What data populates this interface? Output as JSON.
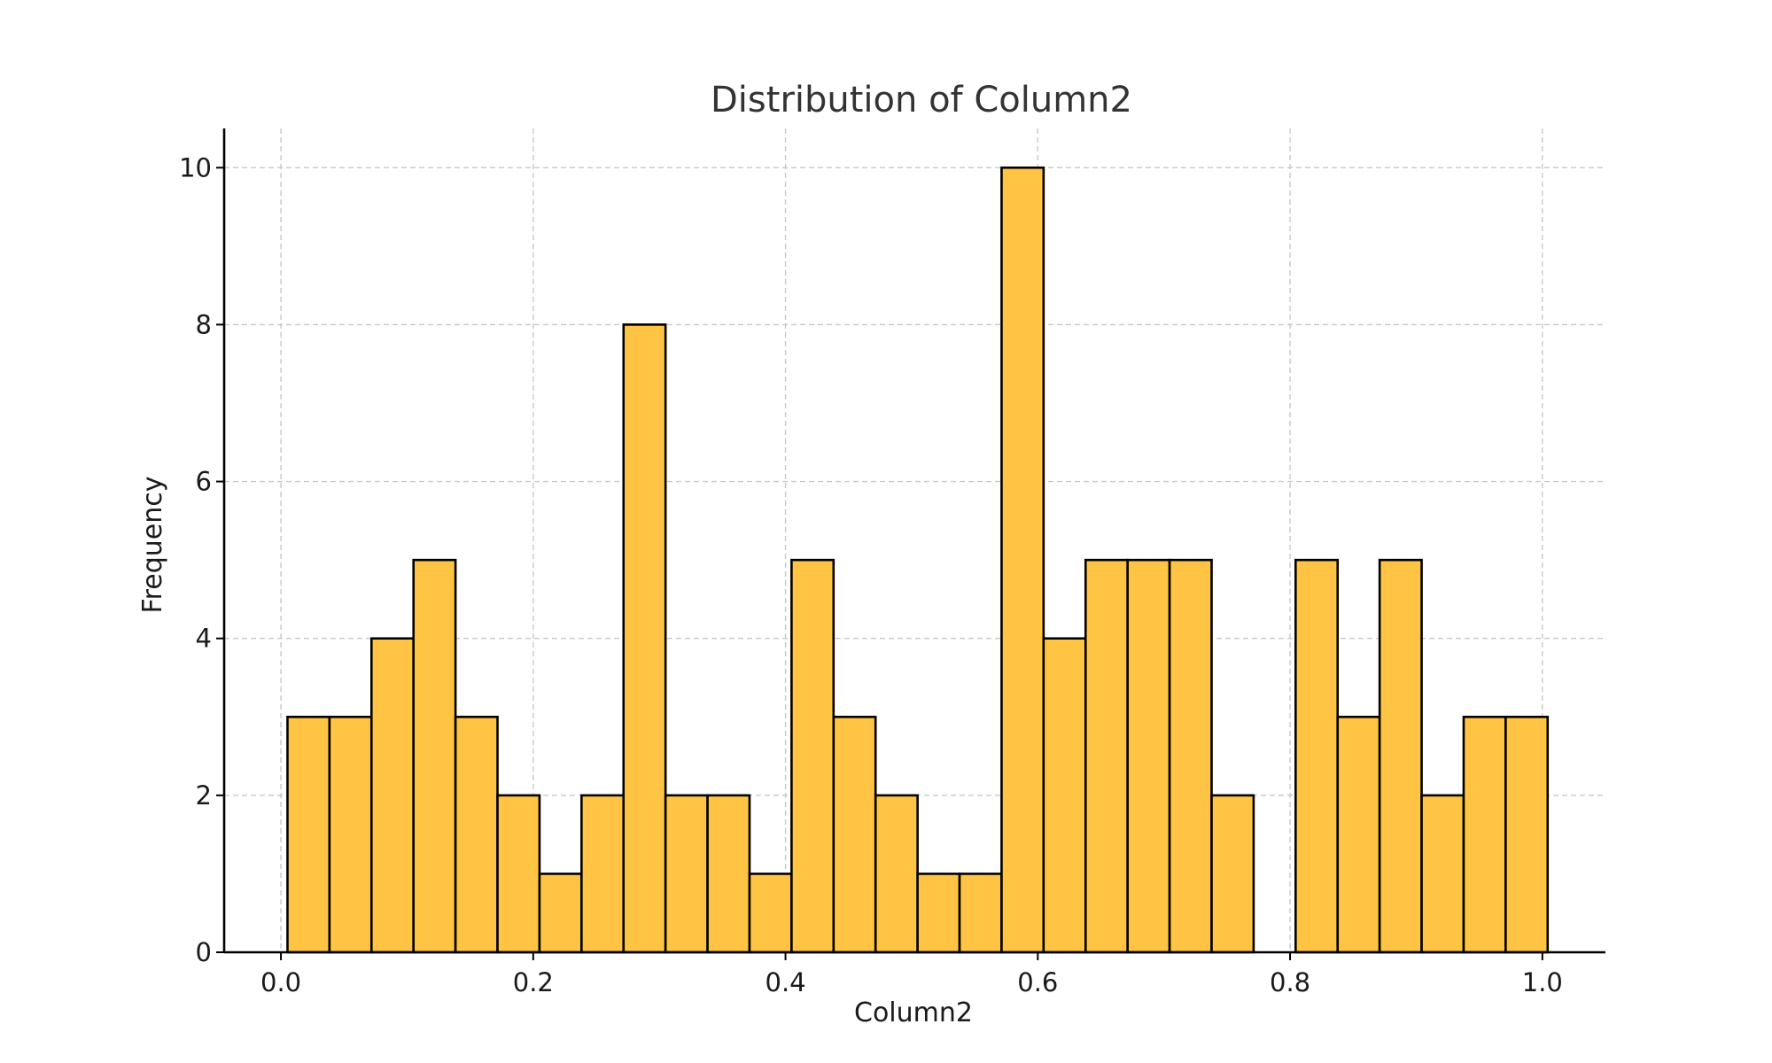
{
  "chart_data": {
    "type": "bar",
    "title": "Distribution of Column2",
    "xlabel": "Column2",
    "ylabel": "Frequency",
    "bin_edges": [
      0.0052,
      0.0385,
      0.0718,
      0.1051,
      0.1384,
      0.1717,
      0.205,
      0.2383,
      0.2716,
      0.3049,
      0.3382,
      0.3715,
      0.4048,
      0.4381,
      0.4714,
      0.5047,
      0.538,
      0.5713,
      0.6046,
      0.6379,
      0.6712,
      0.7045,
      0.7378,
      0.7711,
      0.8044,
      0.8377,
      0.871,
      0.9043,
      0.9376,
      0.9709,
      1.0042
    ],
    "values": [
      3,
      3,
      4,
      5,
      3,
      2,
      1,
      2,
      8,
      2,
      2,
      1,
      5,
      3,
      2,
      1,
      1,
      10,
      4,
      5,
      5,
      5,
      2,
      0,
      5,
      3,
      5,
      2,
      3,
      3
    ],
    "xlim": [
      -0.045,
      1.05
    ],
    "ylim": [
      0,
      10.5
    ],
    "x_ticks": [
      0.0,
      0.2,
      0.4,
      0.6,
      0.8,
      1.0
    ],
    "x_tick_labels": [
      "0.0",
      "0.2",
      "0.4",
      "0.6",
      "0.8",
      "1.0"
    ],
    "y_ticks": [
      0,
      2,
      4,
      6,
      8,
      10
    ],
    "y_tick_labels": [
      "0",
      "2",
      "4",
      "6",
      "8",
      "10"
    ],
    "grid": true,
    "bar_color": "#FFC444",
    "edge_color": "#000000"
  }
}
